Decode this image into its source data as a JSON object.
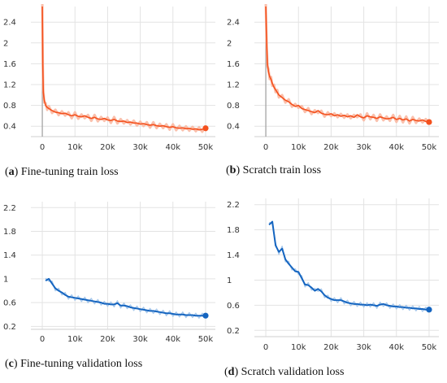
{
  "colors": {
    "train": "#f4511e",
    "train_light": "#f9b9a3",
    "val": "#1565c0",
    "val_light": "#9ec3ea",
    "grid": "#e3e3e3",
    "axis": "#9e9e9e"
  },
  "chart_data": [
    {
      "type": "line",
      "caption_letter": "a",
      "caption_text": "Fine-tuning train loss",
      "xlim": [
        -3500,
        53000
      ],
      "ylim": [
        0.2,
        2.7
      ],
      "x_ticks": [
        0,
        10000,
        20000,
        30000,
        40000,
        50000
      ],
      "x_tick_labels": [
        "0",
        "10k",
        "20k",
        "30k",
        "40k",
        "50k"
      ],
      "y_ticks": [
        0.4,
        0.8,
        1.2,
        1.6,
        2.0,
        2.4
      ],
      "y_tick_labels": [
        "0.4",
        "0.8",
        "1.2",
        "1.6",
        "2",
        "2.4"
      ],
      "series": [
        {
          "x": [
            0,
            150,
            300,
            600,
            1000,
            1500,
            2000,
            3000,
            4000,
            5000,
            6000,
            7000,
            8000,
            9000,
            10000,
            11000,
            12000,
            13000,
            14000,
            15000,
            16000,
            17000,
            18000,
            19000,
            20000,
            21000,
            22000,
            23000,
            24000,
            25000,
            26000,
            27000,
            28000,
            29000,
            30000,
            31000,
            32000,
            33000,
            34000,
            35000,
            36000,
            37000,
            38000,
            39000,
            40000,
            41000,
            42000,
            43000,
            44000,
            45000,
            46000,
            47000,
            48000,
            49000,
            50000
          ],
          "y": [
            2.7,
            1.6,
            1.05,
            0.9,
            0.8,
            0.76,
            0.74,
            0.7,
            0.67,
            0.66,
            0.64,
            0.65,
            0.62,
            0.6,
            0.62,
            0.59,
            0.58,
            0.6,
            0.57,
            0.55,
            0.57,
            0.54,
            0.53,
            0.55,
            0.52,
            0.51,
            0.53,
            0.5,
            0.49,
            0.5,
            0.47,
            0.48,
            0.46,
            0.46,
            0.44,
            0.45,
            0.43,
            0.42,
            0.43,
            0.41,
            0.4,
            0.41,
            0.39,
            0.38,
            0.39,
            0.37,
            0.36,
            0.37,
            0.35,
            0.36,
            0.34,
            0.35,
            0.33,
            0.34,
            0.36
          ]
        }
      ]
    },
    {
      "type": "line",
      "caption_letter": "b",
      "caption_text": "Scratch train loss",
      "xlim": [
        -3500,
        53000
      ],
      "ylim": [
        0.2,
        2.7
      ],
      "x_ticks": [
        0,
        10000,
        20000,
        30000,
        40000,
        50000
      ],
      "x_tick_labels": [
        "0",
        "10k",
        "20k",
        "30k",
        "40k",
        "50k"
      ],
      "y_ticks": [
        0.4,
        0.8,
        1.2,
        1.6,
        2.0,
        2.4
      ],
      "y_tick_labels": [
        "0.4",
        "0.8",
        "1.2",
        "1.6",
        "2",
        "2.4"
      ],
      "series": [
        {
          "x": [
            0,
            150,
            300,
            500,
            800,
            1200,
            1600,
            2000,
            2500,
            3000,
            3500,
            4000,
            5000,
            6000,
            7000,
            8000,
            9000,
            10000,
            11000,
            12000,
            13000,
            14000,
            15000,
            16000,
            17000,
            18000,
            19000,
            20000,
            21000,
            22000,
            23000,
            24000,
            25000,
            26000,
            27000,
            28000,
            29000,
            30000,
            31000,
            32000,
            33000,
            34000,
            35000,
            36000,
            37000,
            38000,
            39000,
            40000,
            41000,
            42000,
            43000,
            44000,
            45000,
            46000,
            47000,
            48000,
            49000,
            50000
          ],
          "y": [
            2.7,
            2.3,
            1.9,
            1.6,
            1.45,
            1.35,
            1.3,
            1.22,
            1.15,
            1.1,
            1.05,
            1.0,
            0.95,
            0.9,
            0.87,
            0.82,
            0.78,
            0.8,
            0.74,
            0.72,
            0.7,
            0.68,
            0.66,
            0.7,
            0.65,
            0.63,
            0.62,
            0.64,
            0.6,
            0.62,
            0.59,
            0.61,
            0.58,
            0.6,
            0.57,
            0.62,
            0.58,
            0.56,
            0.6,
            0.58,
            0.57,
            0.55,
            0.58,
            0.56,
            0.54,
            0.55,
            0.57,
            0.53,
            0.55,
            0.52,
            0.54,
            0.5,
            0.53,
            0.51,
            0.5,
            0.52,
            0.49,
            0.48
          ]
        }
      ]
    },
    {
      "type": "line",
      "caption_letter": "c",
      "caption_text": "Fine-tuning validation loss",
      "xlim": [
        -3500,
        53000
      ],
      "ylim": [
        0.15,
        2.3
      ],
      "x_ticks": [
        0,
        10000,
        20000,
        30000,
        40000,
        50000
      ],
      "x_tick_labels": [
        "0",
        "10k",
        "20k",
        "30k",
        "40k",
        "50k"
      ],
      "y_ticks": [
        0.2,
        0.6,
        1.0,
        1.4,
        1.8,
        2.2
      ],
      "y_tick_labels": [
        "0.2",
        "0.6",
        "1",
        "1.4",
        "1.8",
        "2.2"
      ],
      "series": [
        {
          "x": [
            1000,
            2000,
            3000,
            4000,
            5000,
            6000,
            7000,
            8000,
            9000,
            10000,
            11000,
            12000,
            13000,
            14000,
            15000,
            16000,
            17000,
            18000,
            19000,
            20000,
            21000,
            22000,
            23000,
            24000,
            25000,
            26000,
            27000,
            28000,
            29000,
            30000,
            31000,
            32000,
            33000,
            34000,
            35000,
            36000,
            37000,
            38000,
            39000,
            40000,
            41000,
            42000,
            43000,
            44000,
            45000,
            46000,
            47000,
            48000,
            49000,
            50000
          ],
          "y": [
            0.97,
            1.0,
            0.92,
            0.84,
            0.8,
            0.77,
            0.73,
            0.7,
            0.69,
            0.68,
            0.67,
            0.66,
            0.65,
            0.64,
            0.63,
            0.62,
            0.61,
            0.6,
            0.58,
            0.58,
            0.57,
            0.57,
            0.59,
            0.55,
            0.55,
            0.54,
            0.52,
            0.51,
            0.5,
            0.49,
            0.48,
            0.47,
            0.46,
            0.46,
            0.45,
            0.44,
            0.43,
            0.42,
            0.42,
            0.41,
            0.4,
            0.4,
            0.4,
            0.39,
            0.39,
            0.39,
            0.38,
            0.38,
            0.38,
            0.38
          ]
        }
      ]
    },
    {
      "type": "line",
      "caption_letter": "d",
      "caption_text": "Scratch validation loss",
      "xlim": [
        -3500,
        53000
      ],
      "ylim": [
        0.1,
        2.3
      ],
      "x_ticks": [
        0,
        10000,
        20000,
        30000,
        40000,
        50000
      ],
      "x_tick_labels": [
        "0",
        "10k",
        "20k",
        "30k",
        "40k",
        "50k"
      ],
      "y_ticks": [
        0.2,
        0.6,
        1.0,
        1.4,
        1.8,
        2.2
      ],
      "y_tick_labels": [
        "0.2",
        "0.6",
        "1",
        "1.4",
        "1.8",
        "2.2"
      ],
      "series": [
        {
          "x": [
            1000,
            2000,
            3000,
            4000,
            5000,
            6000,
            7000,
            8000,
            9000,
            10000,
            11000,
            12000,
            13000,
            14000,
            15000,
            16000,
            17000,
            18000,
            19000,
            20000,
            21000,
            22000,
            23000,
            24000,
            25000,
            26000,
            27000,
            28000,
            29000,
            30000,
            31000,
            32000,
            33000,
            34000,
            35000,
            36000,
            37000,
            38000,
            39000,
            40000,
            41000,
            42000,
            43000,
            44000,
            45000,
            46000,
            47000,
            48000,
            49000,
            50000
          ],
          "y": [
            1.88,
            1.93,
            1.55,
            1.45,
            1.5,
            1.33,
            1.26,
            1.2,
            1.14,
            1.13,
            1.03,
            0.93,
            0.92,
            0.88,
            0.83,
            0.86,
            0.82,
            0.76,
            0.72,
            0.7,
            0.68,
            0.68,
            0.68,
            0.66,
            0.64,
            0.63,
            0.62,
            0.62,
            0.61,
            0.61,
            0.6,
            0.61,
            0.6,
            0.59,
            0.61,
            0.62,
            0.6,
            0.59,
            0.58,
            0.58,
            0.57,
            0.57,
            0.56,
            0.56,
            0.55,
            0.55,
            0.54,
            0.54,
            0.53,
            0.53
          ]
        }
      ]
    }
  ]
}
